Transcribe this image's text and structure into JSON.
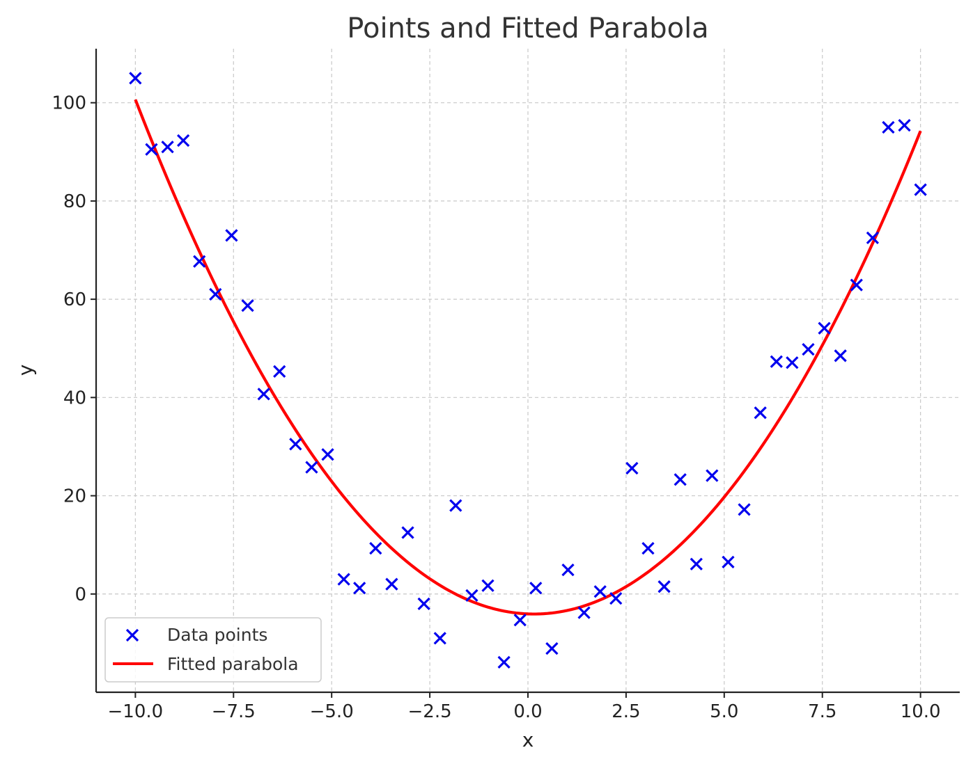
{
  "chart_data": {
    "type": "scatter",
    "title": "Points and Fitted Parabola",
    "xlabel": "x",
    "ylabel": "y",
    "xlim": [
      -11.0,
      11.0
    ],
    "ylim": [
      -20,
      111
    ],
    "grid": true,
    "legend_position": "lower-left",
    "x_ticks": [
      -10.0,
      -7.5,
      -5.0,
      -2.5,
      0.0,
      2.5,
      5.0,
      7.5,
      10.0
    ],
    "x_tick_labels": [
      "−10.0",
      "−7.5",
      "−5.0",
      "−2.5",
      "0.0",
      "2.5",
      "5.0",
      "7.5",
      "10.0"
    ],
    "y_ticks": [
      0,
      20,
      40,
      60,
      80,
      100
    ],
    "y_tick_labels": [
      "0",
      "20",
      "40",
      "60",
      "80",
      "100"
    ],
    "series": [
      {
        "name": "Data points",
        "kind": "scatter",
        "marker": "x",
        "color": "#0000ee",
        "x": [
          -10.0,
          -9.59,
          -9.18,
          -8.78,
          -8.37,
          -7.96,
          -7.55,
          -7.14,
          -6.73,
          -6.33,
          -5.92,
          -5.51,
          -5.1,
          -4.69,
          -4.29,
          -3.88,
          -3.47,
          -3.06,
          -2.65,
          -2.24,
          -1.84,
          -1.43,
          -1.02,
          -0.61,
          -0.2,
          0.2,
          0.61,
          1.02,
          1.43,
          1.84,
          2.24,
          2.65,
          3.06,
          3.47,
          3.88,
          4.29,
          4.69,
          5.1,
          5.51,
          5.92,
          6.33,
          6.73,
          7.14,
          7.55,
          7.96,
          8.37,
          8.78,
          9.18,
          9.59,
          10.0
        ],
        "y": [
          105,
          90.5,
          91,
          92.3,
          67.7,
          61,
          73,
          58.7,
          40.7,
          45.3,
          30.5,
          25.8,
          28.4,
          3,
          1.2,
          9.3,
          2,
          12.5,
          -2,
          -9,
          18,
          -0.3,
          1.7,
          -13.9,
          -5.3,
          1.2,
          -11.1,
          4.9,
          -3.8,
          0.5,
          -0.9,
          25.6,
          9.3,
          1.5,
          23.3,
          6.1,
          24.1,
          6.5,
          17.2,
          36.9,
          47.3,
          47.1,
          49.8,
          54.1,
          48.5,
          62.9,
          72.5,
          95,
          95.4,
          82.3
        ]
      },
      {
        "name": "Fitted parabola",
        "kind": "line",
        "color": "#ff0000",
        "equation": "y = 1.015x² - 0.32x - 4.05",
        "x_range": [
          -10.0,
          10.0
        ]
      }
    ]
  }
}
